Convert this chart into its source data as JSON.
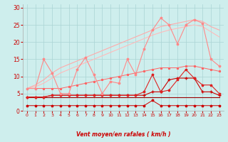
{
  "x": [
    0,
    1,
    2,
    3,
    4,
    5,
    6,
    7,
    8,
    9,
    10,
    11,
    12,
    13,
    14,
    15,
    16,
    17,
    18,
    19,
    20,
    21,
    22,
    23
  ],
  "background_color": "#ceeeed",
  "grid_color": "#aad4d4",
  "xlabel": "Vent moyen/en rafales ( km/h )",
  "xlabel_color": "#cc0000",
  "tick_color": "#cc0000",
  "ylim": [
    0,
    31
  ],
  "yticks": [
    0,
    5,
    10,
    15,
    20,
    25,
    30
  ],
  "line_smooth1_color": "#ffaaaa",
  "line_smooth1_y": [
    6.5,
    7.5,
    9.0,
    11.0,
    12.5,
    13.5,
    14.5,
    15.5,
    16.5,
    17.5,
    18.5,
    19.5,
    20.5,
    21.5,
    22.5,
    23.5,
    24.5,
    25.0,
    25.5,
    26.0,
    26.5,
    26.0,
    24.5,
    23.5
  ],
  "line_smooth2_color": "#ffbbbb",
  "line_smooth2_y": [
    6.5,
    7.0,
    8.0,
    9.5,
    11.0,
    12.0,
    13.0,
    14.0,
    15.0,
    16.0,
    17.0,
    18.0,
    19.0,
    20.0,
    21.0,
    22.0,
    22.8,
    23.5,
    24.0,
    24.5,
    25.0,
    24.5,
    23.0,
    21.5
  ],
  "line_zigzag_color": "#ff8888",
  "line_zigzag_y": [
    6.5,
    6.5,
    15.0,
    11.0,
    5.0,
    5.0,
    12.0,
    15.5,
    10.5,
    5.0,
    8.5,
    8.0,
    15.0,
    10.5,
    18.0,
    23.5,
    27.0,
    25.0,
    19.5,
    25.0,
    26.5,
    25.5,
    15.0,
    13.0
  ],
  "line_med_color": "#ff6666",
  "line_med_y": [
    6.5,
    6.5,
    6.5,
    6.5,
    6.5,
    7.0,
    7.5,
    8.0,
    8.5,
    9.0,
    9.5,
    10.0,
    10.5,
    11.0,
    11.5,
    12.0,
    12.5,
    12.5,
    12.5,
    13.0,
    13.0,
    12.5,
    12.0,
    11.5
  ],
  "line_dark1_color": "#cc0000",
  "line_dark1_y": [
    4.0,
    4.0,
    4.0,
    4.5,
    4.5,
    4.5,
    4.5,
    4.5,
    4.5,
    4.5,
    4.5,
    4.5,
    4.5,
    4.5,
    4.5,
    5.5,
    5.5,
    9.0,
    9.5,
    9.5,
    9.5,
    5.5,
    5.5,
    4.5
  ],
  "line_dark2_color": "#dd2222",
  "line_dark2_y": [
    4.0,
    4.0,
    4.0,
    4.5,
    4.5,
    4.5,
    4.5,
    4.5,
    4.5,
    4.5,
    4.5,
    4.5,
    4.5,
    4.5,
    5.5,
    10.5,
    5.5,
    6.0,
    9.0,
    12.0,
    9.5,
    7.5,
    7.5,
    5.0
  ],
  "line_flat_color": "#990000",
  "line_flat_y": [
    4.0,
    4.0,
    4.0,
    4.0,
    4.0,
    4.0,
    4.0,
    4.0,
    4.0,
    4.0,
    4.0,
    4.0,
    4.0,
    4.0,
    4.0,
    4.0,
    4.0,
    4.0,
    4.0,
    4.0,
    4.0,
    4.0,
    4.0,
    4.0
  ],
  "line_low_color": "#cc0000",
  "line_low_y": [
    1.5,
    1.5,
    1.5,
    1.5,
    1.5,
    1.5,
    1.5,
    1.5,
    1.5,
    1.5,
    1.5,
    1.5,
    1.5,
    1.5,
    1.5,
    3.0,
    1.5,
    1.5,
    1.5,
    1.5,
    1.5,
    1.5,
    1.5,
    1.5
  ],
  "arrow_chars": [
    "↙",
    "↙",
    "↓",
    "↙",
    "↓",
    "←",
    "↙",
    "←",
    "↑",
    "→",
    "↗",
    "↗",
    "↓",
    "↗",
    "↗",
    "↗",
    "↗",
    "↗",
    "↗",
    "↗",
    "↗",
    "↗",
    "↗",
    "→"
  ]
}
